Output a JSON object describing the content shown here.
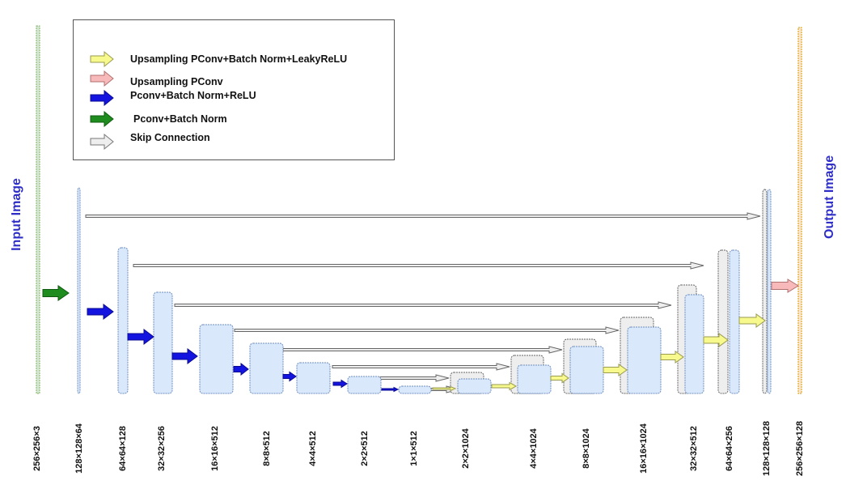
{
  "legend": {
    "items": [
      {
        "label": "Upsampling PConv+Batch Norm+LeakyReLU",
        "color": "#f7f98c",
        "icon": "yellow-arrow-icon"
      },
      {
        "label": "Upsampling PConv",
        "color": "#f7b9b9",
        "icon": "pink-arrow-icon"
      },
      {
        "label": "Pconv+Batch Norm+ReLU",
        "color": "#1414e0",
        "icon": "blue-arrow-icon"
      },
      {
        "label": "Pconv+Batch Norm",
        "color": "#1e8c1e",
        "icon": "green-arrow-icon"
      },
      {
        "label": "Skip Connection",
        "color": "#e6e6e6",
        "icon": "gray-arrow-icon"
      }
    ]
  },
  "input_label": "Input Image",
  "output_label": "Output Image",
  "size_labels": [
    "256×256×3",
    "128×128×64",
    "64×64×128",
    "32×32×256",
    "16×16×512",
    "8×8×512",
    "4×4×512",
    "2×2×512",
    "1×1×512",
    "2×2×1024",
    "4×4×1024",
    "8×8×1024",
    "16×16×1024",
    "32×32×512",
    "64×64×256",
    "128×128×128",
    "256×256×128"
  ],
  "colors": {
    "block_fill": "#dae8fc",
    "block_stroke": "#6c8ebf",
    "skip_fill": "#eeeeee",
    "skip_stroke": "#666666",
    "input_fill": "#d5e8d4",
    "input_stroke": "#82b366",
    "output_fill": "#ffe6cc",
    "output_stroke": "#d79b00",
    "label_blue": "#2f2fc8"
  }
}
